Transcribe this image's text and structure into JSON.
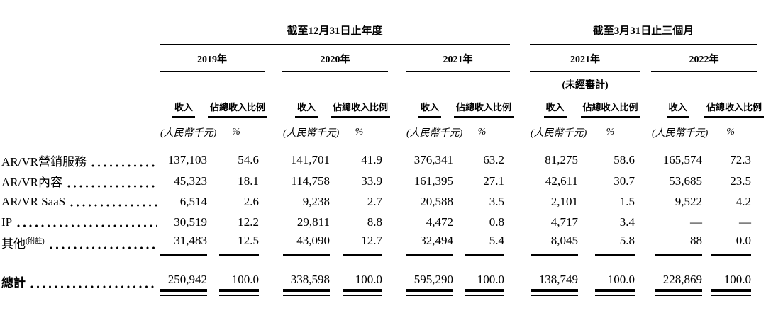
{
  "table": {
    "annual": {
      "title": "截至12月31日止年度",
      "years": [
        "2019年",
        "2020年",
        "2021年"
      ]
    },
    "quarterly": {
      "title": "截至3月31日止三個月",
      "years": [
        "2021年",
        "2022年"
      ],
      "unaudited_note": "(未經審計)"
    },
    "col_headers": {
      "revenue": "收入",
      "share": "佔總收入比例"
    },
    "units": {
      "revenue": "(人民幣千元)",
      "share": "%"
    },
    "rows": [
      {
        "label": "AR/VR營銷服務",
        "sup": "",
        "values": [
          "137,103",
          "54.6",
          "141,701",
          "41.9",
          "376,341",
          "63.2",
          "81,275",
          "58.6",
          "165,574",
          "72.3"
        ]
      },
      {
        "label": "AR/VR內容",
        "sup": "",
        "values": [
          "45,323",
          "18.1",
          "114,758",
          "33.9",
          "161,395",
          "27.1",
          "42,611",
          "30.7",
          "53,685",
          "23.5"
        ]
      },
      {
        "label": "AR/VR SaaS",
        "sup": "",
        "values": [
          "6,514",
          "2.6",
          "9,238",
          "2.7",
          "20,588",
          "3.5",
          "2,101",
          "1.5",
          "9,522",
          "4.2"
        ]
      },
      {
        "label": "IP",
        "sup": "",
        "values": [
          "30,519",
          "12.2",
          "29,811",
          "8.8",
          "4,472",
          "0.8",
          "4,717",
          "3.4",
          "—",
          "—"
        ]
      },
      {
        "label": "其他",
        "sup": "(附註)",
        "values": [
          "31,483",
          "12.5",
          "43,090",
          "12.7",
          "32,494",
          "5.4",
          "8,045",
          "5.8",
          "88",
          "0.0"
        ]
      }
    ],
    "total_row": {
      "label": "總計",
      "sup": "",
      "values": [
        "250,942",
        "100.0",
        "338,598",
        "100.0",
        "595,290",
        "100.0",
        "138,749",
        "100.0",
        "228,869",
        "100.0"
      ]
    }
  }
}
